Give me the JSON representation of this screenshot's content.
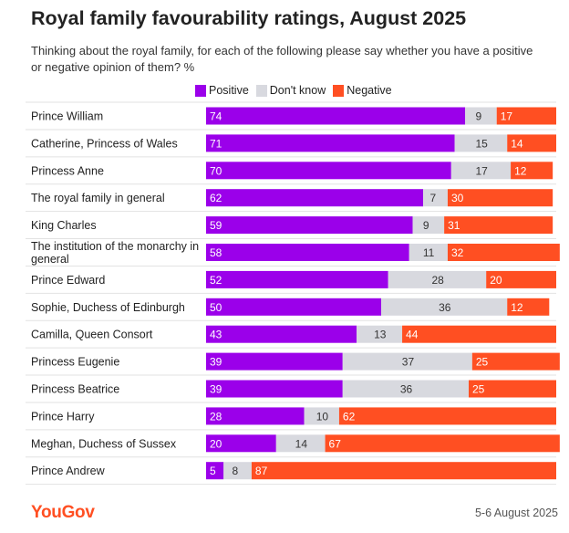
{
  "chart_data": {
    "type": "bar",
    "orientation": "horizontal",
    "stacked": true,
    "title": "Royal family favourability ratings, August 2025",
    "subtitle": "Thinking about the royal family, for each of the following please say whether you have a positive or negative opinion of them? %",
    "unit": "%",
    "xlim": [
      0,
      100
    ],
    "categories": [
      "Prince William",
      "Catherine, Princess of Wales",
      "Princess Anne",
      "The royal family in general",
      "King Charles",
      "The institution of the monarchy in general",
      "Prince Edward",
      "Sophie, Duchess of Edinburgh",
      "Camilla, Queen Consort",
      "Princess Eugenie",
      "Princess Beatrice",
      "Prince Harry",
      "Meghan, Duchess of Sussex",
      "Prince Andrew"
    ],
    "series": [
      {
        "name": "Positive",
        "color": "#9b00ea",
        "values": [
          74,
          71,
          70,
          62,
          59,
          58,
          52,
          50,
          43,
          39,
          39,
          28,
          20,
          5
        ]
      },
      {
        "name": "Don't know",
        "color": "#d8d9df",
        "values": [
          9,
          15,
          17,
          7,
          9,
          11,
          28,
          36,
          13,
          37,
          36,
          10,
          14,
          8
        ]
      },
      {
        "name": "Negative",
        "color": "#ff4f22",
        "values": [
          17,
          14,
          12,
          30,
          31,
          32,
          20,
          12,
          44,
          25,
          25,
          62,
          67,
          87
        ]
      }
    ],
    "legend": "top"
  },
  "footer": {
    "brand": "YouGov",
    "date": "5-6 August 2025"
  }
}
